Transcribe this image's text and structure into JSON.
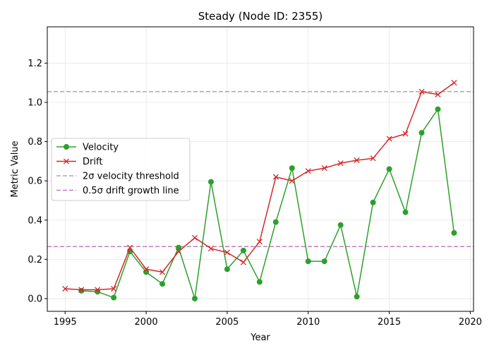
{
  "chart_data": {
    "type": "line",
    "title": "Steady (Node ID: 2355)",
    "xlabel": "Year",
    "ylabel": "Metric Value",
    "xlim": [
      1993.9,
      2020.2
    ],
    "ylim": [
      -0.065,
      1.385
    ],
    "xticks": [
      1995,
      2000,
      2005,
      2010,
      2015,
      2020
    ],
    "yticks": [
      0.0,
      0.2,
      0.4,
      0.6,
      0.8,
      1.0,
      1.2
    ],
    "grid": true,
    "legend_position": "center-left",
    "series": [
      {
        "name": "Velocity",
        "color": "#2ca02c",
        "marker": "circle",
        "x": [
          1996,
          1997,
          1998,
          1999,
          2000,
          2001,
          2002,
          2003,
          2004,
          2005,
          2006,
          2007,
          2008,
          2009,
          2010,
          2011,
          2012,
          2013,
          2014,
          2015,
          2016,
          2017,
          2018,
          2019
        ],
        "y": [
          0.04,
          0.035,
          0.005,
          0.24,
          0.135,
          0.075,
          0.26,
          0.0,
          0.595,
          0.15,
          0.245,
          0.085,
          0.39,
          0.665,
          0.19,
          0.19,
          0.375,
          0.01,
          0.49,
          0.66,
          0.44,
          0.845,
          0.965,
          0.335
        ]
      },
      {
        "name": "Drift",
        "color": "#d62728",
        "marker": "x",
        "x": [
          1995,
          1996,
          1997,
          1998,
          1999,
          2000,
          2001,
          2002,
          2003,
          2004,
          2005,
          2006,
          2007,
          2008,
          2009,
          2010,
          2011,
          2012,
          2013,
          2014,
          2015,
          2016,
          2017,
          2018,
          2019
        ],
        "y": [
          0.05,
          0.045,
          0.045,
          0.05,
          0.26,
          0.15,
          0.135,
          0.24,
          0.31,
          0.255,
          0.235,
          0.185,
          0.29,
          0.62,
          0.6,
          0.65,
          0.665,
          0.69,
          0.705,
          0.715,
          0.815,
          0.84,
          1.055,
          1.04,
          1.1
        ]
      }
    ],
    "reference_lines": [
      {
        "name": "2σ velocity threshold",
        "y": 1.055,
        "color": "#aaaaaa",
        "style": "dashed"
      },
      {
        "name": "0.5σ drift growth line",
        "y": 0.265,
        "color": "#c17fbf",
        "style": "dashed"
      }
    ]
  }
}
